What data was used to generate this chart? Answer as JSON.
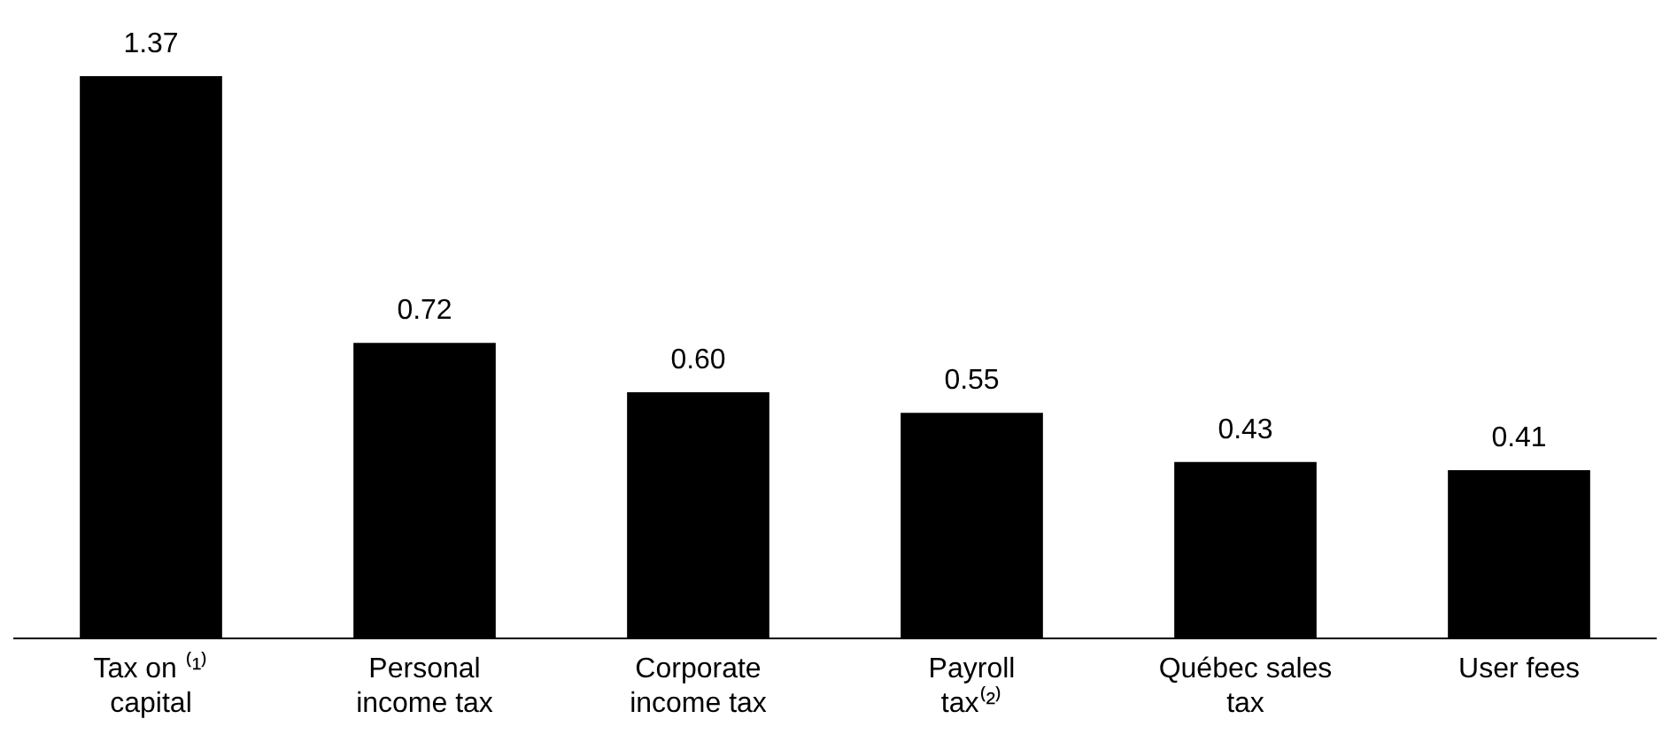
{
  "chart_data": {
    "type": "bar",
    "categories": [
      "Tax on ⁽¹⁾\ncapital",
      "Personal\nincome tax",
      "Corporate\nincome tax",
      "Payroll\ntax⁽²⁾",
      "Québec sales\ntax",
      "User fees"
    ],
    "values": [
      1.37,
      0.72,
      0.6,
      0.55,
      0.43,
      0.41
    ],
    "value_labels": [
      "1.37",
      "0.72",
      "0.60",
      "0.55",
      "0.43",
      "0.41"
    ],
    "color": "#000000"
  }
}
